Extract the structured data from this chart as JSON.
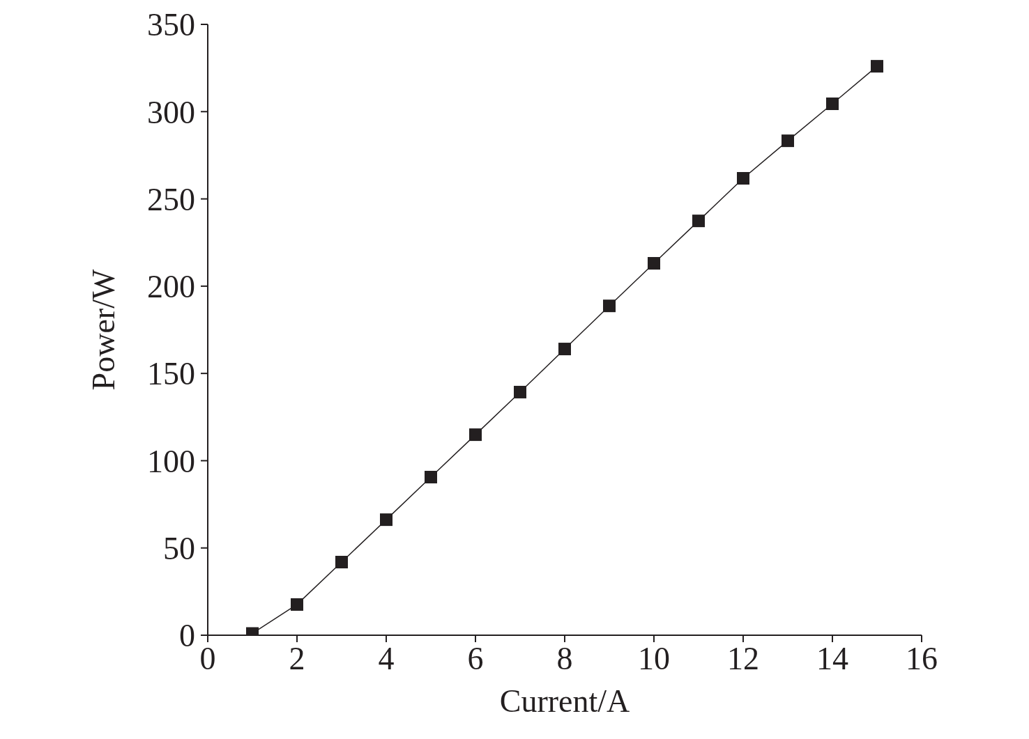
{
  "chart_data": {
    "type": "line",
    "xlabel": "Current/A",
    "ylabel": "Power/W",
    "x": [
      1,
      2,
      3,
      4,
      5,
      6,
      7,
      8,
      9,
      10,
      11,
      12,
      13,
      14,
      15
    ],
    "series": [
      {
        "color": "#231f20",
        "values": [
          1,
          17.6,
          41.9,
          66.2,
          90.6,
          114.9,
          139.3,
          164,
          188.7,
          213.1,
          237.4,
          261.8,
          283.3,
          304.5,
          326
        ]
      }
    ],
    "xlim": [
      0,
      16
    ],
    "xticks": [
      0,
      2,
      4,
      6,
      8,
      10,
      12,
      14,
      16
    ],
    "ylim": [
      0,
      350
    ],
    "yticks": [
      0,
      50,
      100,
      150,
      200,
      250,
      300,
      350
    ],
    "marker": "square",
    "line_style": "solid",
    "grid": false,
    "legend": false
  }
}
